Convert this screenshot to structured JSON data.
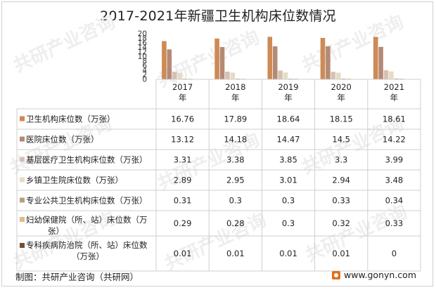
{
  "chart_data": {
    "type": "bar",
    "title": "2017-2021年新疆卫生机构床位数情况",
    "categories": [
      "2017\n年",
      "2018\n年",
      "2019\n年",
      "2020\n年",
      "2021\n年"
    ],
    "y_ticks": [
      "0",
      "2",
      "4",
      "6",
      "8",
      "10",
      "12",
      "14",
      "16",
      "18",
      "20"
    ],
    "ylim": [
      0,
      20
    ],
    "series": [
      {
        "name": "卫生机构床位数（万张）",
        "color": "#cd8a55",
        "values": [
          16.76,
          17.89,
          18.64,
          18.15,
          18.61
        ]
      },
      {
        "name": "医院床位数（万张）",
        "color": "#b58a75",
        "values": [
          13.12,
          14.18,
          14.47,
          14.5,
          14.22
        ]
      },
      {
        "name": "基层医疗卫生机构床位数（万张）",
        "color": "#d6c0b4",
        "values": [
          3.31,
          3.38,
          3.85,
          3.3,
          3.99
        ]
      },
      {
        "name": "乡镇卫生院床位数（万张）",
        "color": "#e4dcc4",
        "values": [
          2.89,
          2.95,
          3.01,
          2.94,
          3.48
        ]
      },
      {
        "name": "专业公共卫生机构床位数（万张）",
        "color": "#b89e82",
        "values": [
          0.31,
          0.3,
          0.3,
          0.33,
          0.34
        ]
      },
      {
        "name": "妇幼保健院（所、站）床位数（万张）",
        "color": "#e3b988",
        "values": [
          0.29,
          0.28,
          0.3,
          0.32,
          0.33
        ]
      },
      {
        "name": "专科疾病防治院（所、站）床位数（万张）",
        "color": "#7a4d2b",
        "values": [
          "0.01",
          "0.01",
          "0.01",
          "0.01",
          "0"
        ]
      }
    ]
  },
  "footer": {
    "credit": "制图：共研产业咨询（共研网）",
    "site": "www.gonyn.com"
  },
  "watermark": "共研产业咨询"
}
